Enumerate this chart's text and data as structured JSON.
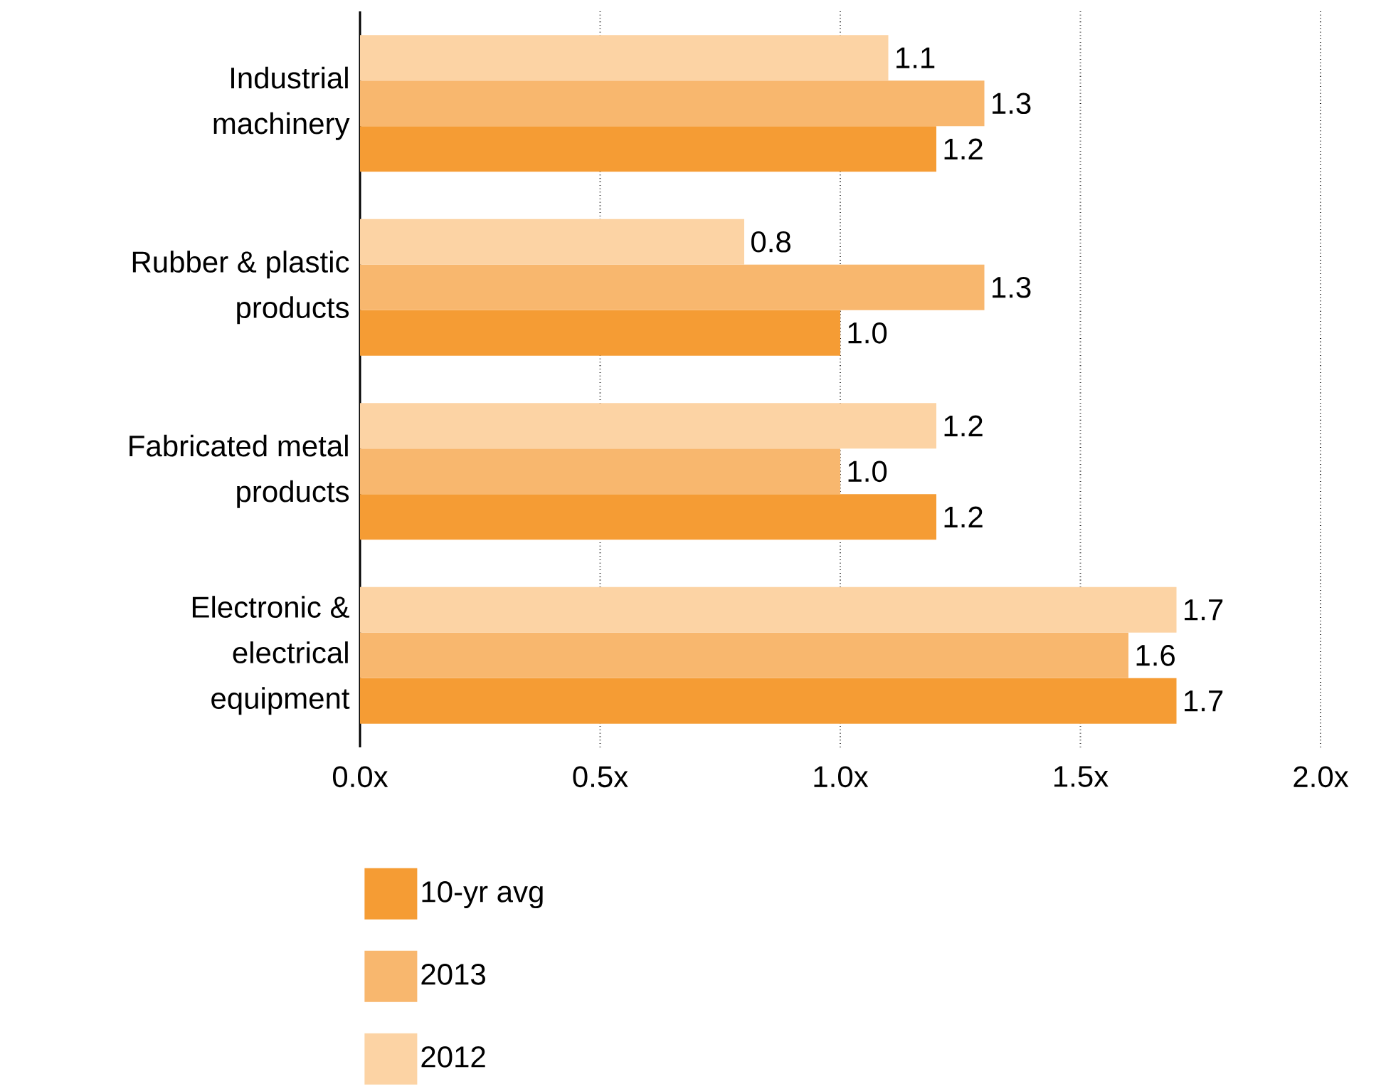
{
  "chart_data": {
    "type": "bar",
    "orientation": "horizontal",
    "categories": [
      "Industrial machinery",
      "Rubber & plastic products",
      "Fabricated metal products",
      "Electronic & electrical equipment"
    ],
    "series": [
      {
        "name": "10-yr avg",
        "color": "#f59c34",
        "values": [
          1.2,
          1.0,
          1.2,
          1.7
        ],
        "value_labels": [
          "1.2",
          "1.0",
          "1.2",
          "1.7"
        ]
      },
      {
        "name": "2013",
        "color": "#f8b76e",
        "values": [
          1.3,
          1.3,
          1.0,
          1.6
        ],
        "value_labels": [
          "1.3",
          "1.3",
          "1.0",
          "1.6"
        ]
      },
      {
        "name": "2012",
        "color": "#fcd3a4",
        "values": [
          1.1,
          0.8,
          1.2,
          1.7
        ],
        "value_labels": [
          "1.1",
          "0.8",
          "1.2",
          "1.7"
        ]
      }
    ],
    "xlim": [
      0,
      2
    ],
    "xticks": [
      {
        "value": 0,
        "label": "0.0x"
      },
      {
        "value": 0.5,
        "label": "0.5x"
      },
      {
        "value": 1.0,
        "label": "1.0x"
      },
      {
        "value": 1.5,
        "label": "1.5x"
      },
      {
        "value": 2.0,
        "label": "2.0x"
      }
    ],
    "grid": "x",
    "legend": "bottom"
  }
}
